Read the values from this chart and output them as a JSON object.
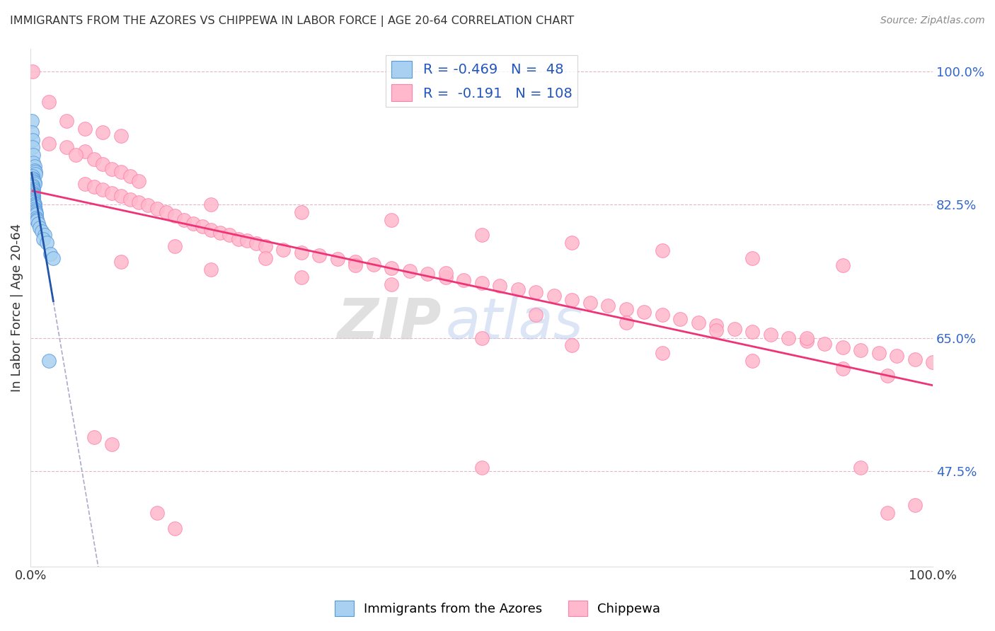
{
  "title": "IMMIGRANTS FROM THE AZORES VS CHIPPEWA IN LABOR FORCE | AGE 20-64 CORRELATION CHART",
  "source": "Source: ZipAtlas.com",
  "ylabel": "In Labor Force | Age 20-64",
  "legend_blue_R": "-0.469",
  "legend_blue_N": "48",
  "legend_pink_R": "-0.191",
  "legend_pink_N": "108",
  "legend_label_blue": "Immigrants from the Azores",
  "legend_label_pink": "Chippewa",
  "watermark_zip": "ZIP",
  "watermark_atlas": "atlas",
  "blue_color": "#a8d0f0",
  "pink_color": "#ffb8cc",
  "blue_edge_color": "#5599dd",
  "pink_edge_color": "#ff80aa",
  "blue_line_color": "#2255aa",
  "pink_line_color": "#ee3377",
  "blue_scatter": [
    [
      0.001,
      0.935
    ],
    [
      0.001,
      0.92
    ],
    [
      0.002,
      0.91
    ],
    [
      0.002,
      0.9
    ],
    [
      0.003,
      0.89
    ],
    [
      0.003,
      0.88
    ],
    [
      0.004,
      0.875
    ],
    [
      0.004,
      0.87
    ],
    [
      0.005,
      0.868
    ],
    [
      0.005,
      0.865
    ],
    [
      0.002,
      0.862
    ],
    [
      0.002,
      0.86
    ],
    [
      0.003,
      0.858
    ],
    [
      0.003,
      0.856
    ],
    [
      0.004,
      0.854
    ],
    [
      0.004,
      0.852
    ],
    [
      0.002,
      0.85
    ],
    [
      0.002,
      0.848
    ],
    [
      0.003,
      0.846
    ],
    [
      0.003,
      0.844
    ],
    [
      0.002,
      0.842
    ],
    [
      0.002,
      0.84
    ],
    [
      0.003,
      0.838
    ],
    [
      0.003,
      0.836
    ],
    [
      0.003,
      0.834
    ],
    [
      0.003,
      0.832
    ],
    [
      0.003,
      0.83
    ],
    [
      0.003,
      0.828
    ],
    [
      0.004,
      0.826
    ],
    [
      0.004,
      0.824
    ],
    [
      0.004,
      0.822
    ],
    [
      0.004,
      0.82
    ],
    [
      0.005,
      0.818
    ],
    [
      0.005,
      0.816
    ],
    [
      0.006,
      0.814
    ],
    [
      0.006,
      0.812
    ],
    [
      0.006,
      0.808
    ],
    [
      0.007,
      0.806
    ],
    [
      0.007,
      0.804
    ],
    [
      0.008,
      0.8
    ],
    [
      0.01,
      0.795
    ],
    [
      0.012,
      0.79
    ],
    [
      0.015,
      0.785
    ],
    [
      0.014,
      0.78
    ],
    [
      0.018,
      0.775
    ],
    [
      0.02,
      0.62
    ],
    [
      0.022,
      0.76
    ],
    [
      0.025,
      0.755
    ]
  ],
  "pink_scatter": [
    [
      0.002,
      1.0
    ],
    [
      0.02,
      0.96
    ],
    [
      0.04,
      0.935
    ],
    [
      0.06,
      0.925
    ],
    [
      0.08,
      0.92
    ],
    [
      0.1,
      0.915
    ],
    [
      0.02,
      0.905
    ],
    [
      0.04,
      0.9
    ],
    [
      0.06,
      0.895
    ],
    [
      0.05,
      0.89
    ],
    [
      0.07,
      0.885
    ],
    [
      0.08,
      0.878
    ],
    [
      0.09,
      0.872
    ],
    [
      0.1,
      0.868
    ],
    [
      0.11,
      0.862
    ],
    [
      0.12,
      0.856
    ],
    [
      0.06,
      0.852
    ],
    [
      0.07,
      0.848
    ],
    [
      0.08,
      0.845
    ],
    [
      0.09,
      0.84
    ],
    [
      0.1,
      0.836
    ],
    [
      0.11,
      0.832
    ],
    [
      0.12,
      0.828
    ],
    [
      0.13,
      0.824
    ],
    [
      0.14,
      0.82
    ],
    [
      0.15,
      0.815
    ],
    [
      0.16,
      0.81
    ],
    [
      0.17,
      0.805
    ],
    [
      0.18,
      0.8
    ],
    [
      0.19,
      0.796
    ],
    [
      0.2,
      0.792
    ],
    [
      0.21,
      0.788
    ],
    [
      0.22,
      0.785
    ],
    [
      0.23,
      0.78
    ],
    [
      0.24,
      0.778
    ],
    [
      0.25,
      0.774
    ],
    [
      0.26,
      0.77
    ],
    [
      0.28,
      0.766
    ],
    [
      0.3,
      0.762
    ],
    [
      0.32,
      0.758
    ],
    [
      0.34,
      0.754
    ],
    [
      0.36,
      0.75
    ],
    [
      0.38,
      0.746
    ],
    [
      0.4,
      0.742
    ],
    [
      0.42,
      0.738
    ],
    [
      0.44,
      0.734
    ],
    [
      0.46,
      0.73
    ],
    [
      0.48,
      0.726
    ],
    [
      0.5,
      0.722
    ],
    [
      0.52,
      0.718
    ],
    [
      0.54,
      0.714
    ],
    [
      0.56,
      0.71
    ],
    [
      0.58,
      0.705
    ],
    [
      0.6,
      0.7
    ],
    [
      0.62,
      0.696
    ],
    [
      0.64,
      0.692
    ],
    [
      0.66,
      0.688
    ],
    [
      0.68,
      0.684
    ],
    [
      0.7,
      0.68
    ],
    [
      0.72,
      0.675
    ],
    [
      0.74,
      0.67
    ],
    [
      0.76,
      0.666
    ],
    [
      0.78,
      0.662
    ],
    [
      0.8,
      0.658
    ],
    [
      0.82,
      0.654
    ],
    [
      0.84,
      0.65
    ],
    [
      0.86,
      0.646
    ],
    [
      0.88,
      0.642
    ],
    [
      0.9,
      0.638
    ],
    [
      0.92,
      0.634
    ],
    [
      0.94,
      0.63
    ],
    [
      0.96,
      0.626
    ],
    [
      0.98,
      0.622
    ],
    [
      1.0,
      0.618
    ],
    [
      0.2,
      0.825
    ],
    [
      0.3,
      0.815
    ],
    [
      0.4,
      0.805
    ],
    [
      0.5,
      0.785
    ],
    [
      0.6,
      0.775
    ],
    [
      0.7,
      0.765
    ],
    [
      0.8,
      0.755
    ],
    [
      0.9,
      0.745
    ],
    [
      0.16,
      0.77
    ],
    [
      0.26,
      0.755
    ],
    [
      0.36,
      0.745
    ],
    [
      0.46,
      0.735
    ],
    [
      0.56,
      0.68
    ],
    [
      0.66,
      0.67
    ],
    [
      0.76,
      0.66
    ],
    [
      0.86,
      0.65
    ],
    [
      0.1,
      0.75
    ],
    [
      0.2,
      0.74
    ],
    [
      0.3,
      0.73
    ],
    [
      0.4,
      0.72
    ],
    [
      0.5,
      0.65
    ],
    [
      0.6,
      0.64
    ],
    [
      0.7,
      0.63
    ],
    [
      0.8,
      0.62
    ],
    [
      0.9,
      0.61
    ],
    [
      0.95,
      0.6
    ],
    [
      0.07,
      0.52
    ],
    [
      0.09,
      0.51
    ],
    [
      0.5,
      0.48
    ],
    [
      0.92,
      0.48
    ],
    [
      0.95,
      0.42
    ],
    [
      0.98,
      0.43
    ],
    [
      0.14,
      0.42
    ],
    [
      0.16,
      0.4
    ]
  ],
  "xlim": [
    0.0,
    1.0
  ],
  "ylim": [
    0.35,
    1.03
  ],
  "yticks": [
    0.475,
    0.65,
    0.825,
    1.0
  ],
  "ytick_labels": [
    "47.5%",
    "65.0%",
    "82.5%",
    "100.0%"
  ],
  "xticks": [
    0.0,
    0.1,
    0.2,
    0.3,
    0.4,
    0.5,
    0.6,
    0.7,
    0.8,
    0.9,
    1.0
  ],
  "xtick_labels": [
    "0.0%",
    "",
    "",
    "",
    "",
    "",
    "",
    "",
    "",
    "",
    "100.0%"
  ]
}
